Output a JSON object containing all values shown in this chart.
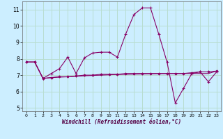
{
  "xlabel": "Windchill (Refroidissement éolien,°C)",
  "background_color": "#cceeff",
  "grid_color": "#b8ddd0",
  "line_color": "#880066",
  "x_values": [
    0,
    1,
    2,
    3,
    4,
    5,
    6,
    7,
    8,
    9,
    10,
    11,
    12,
    13,
    14,
    15,
    16,
    17,
    18,
    19,
    20,
    21,
    22,
    23
  ],
  "series1": [
    7.8,
    7.8,
    6.8,
    7.1,
    7.4,
    8.1,
    7.1,
    8.05,
    8.35,
    8.4,
    8.4,
    8.1,
    9.5,
    10.7,
    11.1,
    11.1,
    9.5,
    7.8,
    5.3,
    6.2,
    7.1,
    7.2,
    6.6,
    7.2
  ],
  "series2": [
    7.8,
    7.8,
    6.8,
    6.85,
    6.9,
    6.9,
    6.95,
    7.0,
    7.0,
    7.05,
    7.05,
    7.05,
    7.1,
    7.1,
    7.1,
    7.1,
    7.1,
    7.1,
    7.1,
    7.1,
    7.15,
    7.2,
    7.2,
    7.25
  ],
  "series3": [
    7.8,
    7.8,
    6.8,
    6.85,
    6.88,
    6.9,
    6.93,
    6.96,
    6.98,
    7.0,
    7.02,
    7.04,
    7.05,
    7.06,
    7.07,
    7.08,
    7.09,
    7.1,
    7.1,
    7.1,
    7.1,
    7.1,
    7.1,
    7.25
  ],
  "ylim": [
    4.8,
    11.5
  ],
  "yticks": [
    5,
    6,
    7,
    8,
    9,
    10,
    11
  ],
  "xlim": [
    -0.5,
    23.5
  ],
  "xticks": [
    0,
    1,
    2,
    3,
    4,
    5,
    6,
    7,
    8,
    9,
    10,
    11,
    12,
    13,
    14,
    15,
    16,
    17,
    18,
    19,
    20,
    21,
    22,
    23
  ]
}
